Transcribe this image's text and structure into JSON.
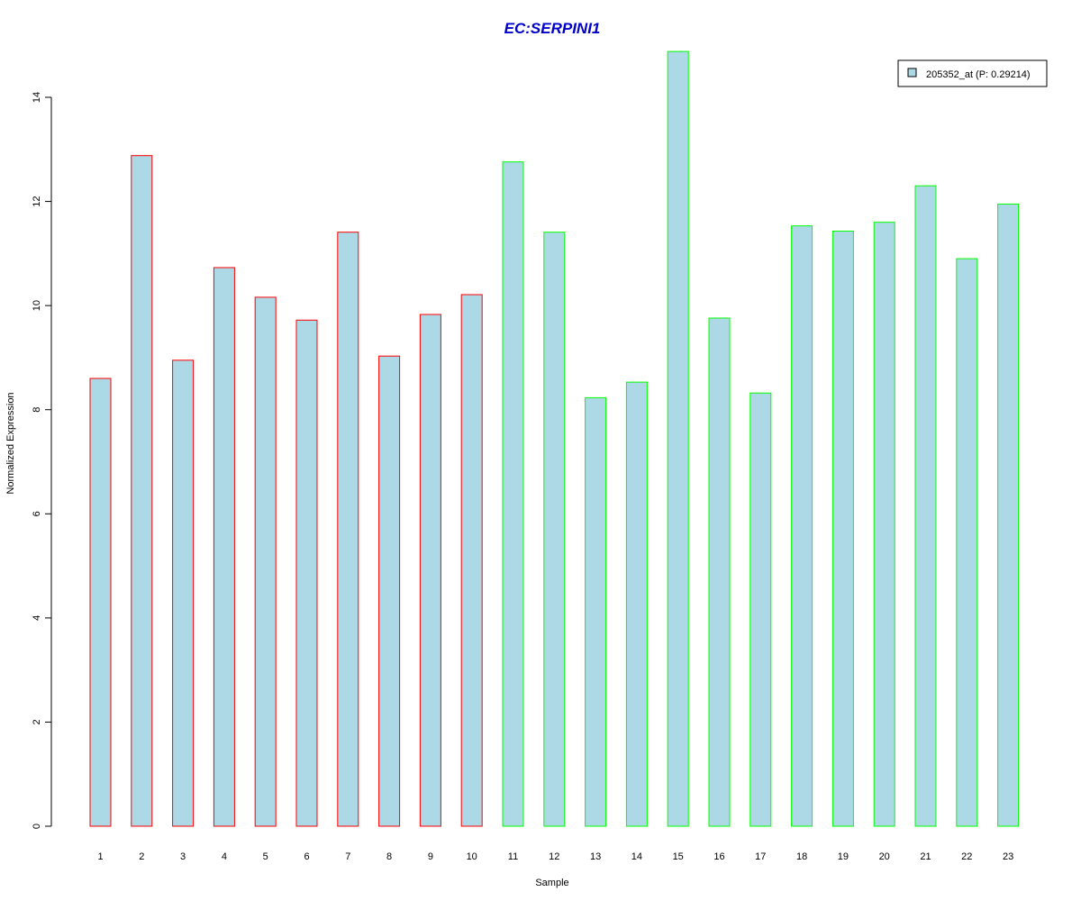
{
  "chart_data": {
    "type": "bar",
    "title": "EC:SERPINI1",
    "xlabel": "Sample",
    "ylabel": "Normalized Expression",
    "categories": [
      "1",
      "2",
      "3",
      "4",
      "5",
      "6",
      "7",
      "8",
      "9",
      "10",
      "11",
      "12",
      "13",
      "14",
      "15",
      "16",
      "17",
      "18",
      "19",
      "20",
      "21",
      "22",
      "23"
    ],
    "series": [
      {
        "name": "205352_at (P: 0.29214)",
        "values": [
          8.6,
          12.88,
          8.95,
          10.73,
          10.16,
          9.72,
          11.41,
          9.03,
          9.83,
          10.21,
          12.76,
          11.41,
          8.23,
          8.53,
          14.88,
          9.76,
          8.32,
          11.53,
          11.43,
          11.6,
          12.3,
          10.9,
          11.95
        ]
      }
    ],
    "group_border_colors": [
      "#ff0000",
      "#ff0000",
      "#ff0000",
      "#ff0000",
      "#ff0000",
      "#ff0000",
      "#ff0000",
      "#ff0000",
      "#ff0000",
      "#ff0000",
      "#00ff00",
      "#00ff00",
      "#00ff00",
      "#00ff00",
      "#00ff00",
      "#00ff00",
      "#00ff00",
      "#00ff00",
      "#00ff00",
      "#00ff00",
      "#00ff00",
      "#00ff00",
      "#00ff00"
    ],
    "ylim": [
      0,
      14
    ],
    "yticks": [
      0,
      2,
      4,
      6,
      8,
      10,
      12,
      14
    ],
    "legend_position": "top-right",
    "grid": false,
    "colors": {
      "bar_fill": "#add8e6",
      "title": "#0000cc",
      "axis": "#000000"
    }
  }
}
